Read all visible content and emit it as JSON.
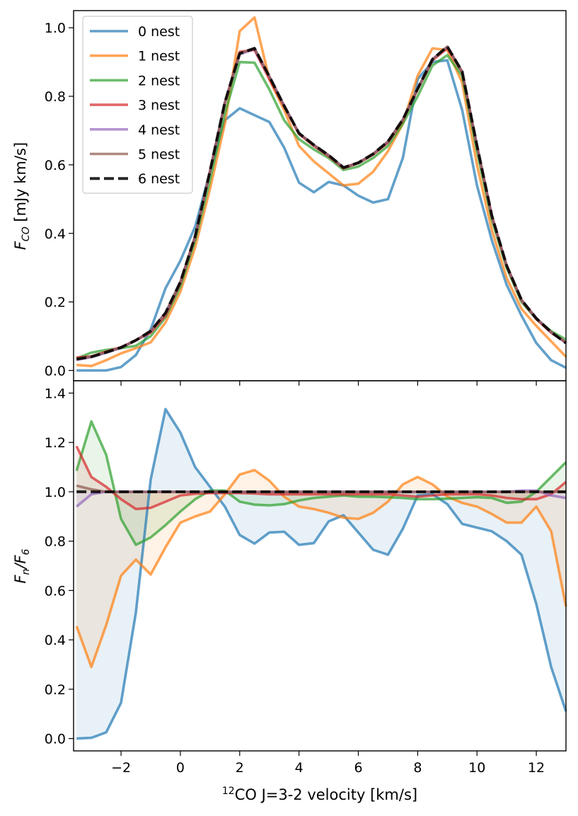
{
  "chart_data": [
    {
      "type": "line",
      "panel": "top",
      "ylabel": "F_CO [mJy km/s]",
      "ylabel_parts": {
        "main": "F",
        "sub": "CO",
        "rest": " [mJy km/s]"
      },
      "xlim": [
        -3.6,
        13.0
      ],
      "ylim": [
        -0.03,
        1.05
      ],
      "yticks": [
        0.0,
        0.2,
        0.4,
        0.6,
        0.8,
        1.0
      ],
      "ytick_labels": [
        "0.0",
        "0.2",
        "0.4",
        "0.6",
        "0.8",
        "1.0"
      ],
      "legend_placement": "upper-left",
      "x": [
        -3.5,
        -3.0,
        -2.5,
        -2.0,
        -1.5,
        -1.0,
        -0.5,
        0.0,
        0.5,
        1.0,
        1.5,
        2.0,
        2.5,
        3.0,
        3.5,
        4.0,
        4.5,
        5.0,
        5.5,
        6.0,
        6.5,
        7.0,
        7.5,
        8.0,
        8.5,
        9.0,
        9.5,
        10.0,
        10.5,
        11.0,
        11.5,
        12.0,
        12.5,
        13.0
      ],
      "series": [
        {
          "name": "0 nest",
          "color": "#1f77b4",
          "dash": "solid",
          "values": [
            0.0,
            0.0,
            0.0,
            0.01,
            0.045,
            0.12,
            0.24,
            0.32,
            0.42,
            0.58,
            0.73,
            0.765,
            0.745,
            0.725,
            0.65,
            0.548,
            0.52,
            0.55,
            0.54,
            0.51,
            0.49,
            0.5,
            0.62,
            0.85,
            0.9,
            0.905,
            0.76,
            0.54,
            0.38,
            0.25,
            0.16,
            0.08,
            0.03,
            0.008
          ]
        },
        {
          "name": "1 nest",
          "color": "#ff7f0e",
          "dash": "solid",
          "values": [
            0.016,
            0.013,
            0.03,
            0.05,
            0.065,
            0.082,
            0.14,
            0.23,
            0.36,
            0.53,
            0.72,
            0.99,
            1.03,
            0.85,
            0.76,
            0.655,
            0.61,
            0.575,
            0.54,
            0.545,
            0.58,
            0.64,
            0.72,
            0.86,
            0.94,
            0.935,
            0.84,
            0.6,
            0.41,
            0.27,
            0.18,
            0.13,
            0.085,
            0.04
          ]
        },
        {
          "name": "2 nest",
          "color": "#2ca02c",
          "dash": "solid",
          "values": [
            0.035,
            0.052,
            0.06,
            0.065,
            0.072,
            0.1,
            0.155,
            0.245,
            0.38,
            0.555,
            0.75,
            0.9,
            0.898,
            0.82,
            0.73,
            0.675,
            0.645,
            0.62,
            0.585,
            0.595,
            0.62,
            0.655,
            0.72,
            0.8,
            0.89,
            0.92,
            0.86,
            0.64,
            0.44,
            0.3,
            0.2,
            0.15,
            0.115,
            0.09
          ]
        },
        {
          "name": "3 nest",
          "color": "#d62728",
          "dash": "solid",
          "values": [
            0.038,
            0.041,
            0.055,
            0.068,
            0.088,
            0.11,
            0.16,
            0.255,
            0.39,
            0.58,
            0.78,
            0.93,
            0.935,
            0.85,
            0.77,
            0.69,
            0.655,
            0.625,
            0.59,
            0.605,
            0.63,
            0.665,
            0.73,
            0.82,
            0.905,
            0.94,
            0.87,
            0.655,
            0.45,
            0.305,
            0.205,
            0.15,
            0.11,
            0.082
          ]
        },
        {
          "name": "4 nest",
          "color": "#9467bd",
          "dash": "solid",
          "values": [
            0.031,
            0.039,
            0.052,
            0.066,
            0.088,
            0.115,
            0.168,
            0.258,
            0.392,
            0.582,
            0.782,
            0.922,
            0.938,
            0.858,
            0.772,
            0.692,
            0.658,
            0.628,
            0.592,
            0.606,
            0.632,
            0.668,
            0.732,
            0.822,
            0.908,
            0.944,
            0.872,
            0.656,
            0.452,
            0.306,
            0.206,
            0.152,
            0.112,
            0.08
          ]
        },
        {
          "name": "5 nest",
          "color": "#8c564b",
          "dash": "solid",
          "values": [
            0.034,
            0.04,
            0.053,
            0.067,
            0.088,
            0.115,
            0.168,
            0.258,
            0.392,
            0.582,
            0.782,
            0.925,
            0.94,
            0.858,
            0.772,
            0.692,
            0.658,
            0.628,
            0.592,
            0.606,
            0.632,
            0.668,
            0.732,
            0.822,
            0.908,
            0.945,
            0.872,
            0.656,
            0.452,
            0.306,
            0.206,
            0.152,
            0.112,
            0.081
          ]
        },
        {
          "name": "6 nest",
          "color": "#000000",
          "dash": "dashed",
          "values": [
            0.033,
            0.04,
            0.053,
            0.067,
            0.088,
            0.115,
            0.168,
            0.258,
            0.392,
            0.582,
            0.782,
            0.925,
            0.94,
            0.858,
            0.772,
            0.692,
            0.658,
            0.628,
            0.592,
            0.606,
            0.632,
            0.668,
            0.732,
            0.822,
            0.908,
            0.945,
            0.872,
            0.656,
            0.452,
            0.306,
            0.206,
            0.152,
            0.112,
            0.08
          ]
        }
      ]
    },
    {
      "type": "line",
      "panel": "bottom",
      "xlabel": "12CO J=3-2 velocity [km/s]",
      "xlabel_parts": {
        "sup": "12",
        "rest": "CO J=3-2 velocity [km/s]"
      },
      "ylabel": "F_n/F_6",
      "ylabel_parts": {
        "main": "F",
        "sub": "n",
        "mid": "/F",
        "sub2": "6"
      },
      "xlim": [
        -3.6,
        13.0
      ],
      "ylim": [
        -0.05,
        1.45
      ],
      "xticks": [
        -2,
        0,
        2,
        4,
        6,
        8,
        10,
        12
      ],
      "xtick_labels": [
        "−2",
        "0",
        "2",
        "4",
        "6",
        "8",
        "10",
        "12"
      ],
      "yticks": [
        0.0,
        0.2,
        0.4,
        0.6,
        0.8,
        1.0,
        1.2,
        1.4
      ],
      "ytick_labels": [
        "0.0",
        "0.2",
        "0.4",
        "0.6",
        "0.8",
        "1.0",
        "1.2",
        "1.4"
      ],
      "fill_between_series_and": 1.0,
      "x": [
        -3.5,
        -3.0,
        -2.5,
        -2.0,
        -1.5,
        -1.0,
        -0.5,
        0.0,
        0.5,
        1.0,
        1.5,
        2.0,
        2.5,
        3.0,
        3.5,
        4.0,
        4.5,
        5.0,
        5.5,
        6.0,
        6.5,
        7.0,
        7.5,
        8.0,
        8.5,
        9.0,
        9.5,
        10.0,
        10.5,
        11.0,
        11.5,
        12.0,
        12.5,
        13.0
      ],
      "series": [
        {
          "name": "0 nest",
          "color": "#1f77b4",
          "dash": "solid",
          "values": [
            0.0,
            0.003,
            0.025,
            0.145,
            0.51,
            1.05,
            1.335,
            1.24,
            1.1,
            1.02,
            0.94,
            0.825,
            0.79,
            0.835,
            0.838,
            0.785,
            0.792,
            0.88,
            0.905,
            0.835,
            0.765,
            0.745,
            0.85,
            0.985,
            0.99,
            0.95,
            0.87,
            0.855,
            0.84,
            0.8,
            0.745,
            0.545,
            0.29,
            0.11
          ]
        },
        {
          "name": "1 nest",
          "color": "#ff7f0e",
          "dash": "solid",
          "values": [
            0.455,
            0.29,
            0.46,
            0.66,
            0.725,
            0.665,
            0.775,
            0.875,
            0.9,
            0.92,
            0.99,
            1.07,
            1.088,
            1.045,
            0.98,
            0.94,
            0.93,
            0.915,
            0.895,
            0.89,
            0.915,
            0.96,
            1.03,
            1.06,
            1.03,
            0.98,
            0.955,
            0.94,
            0.91,
            0.875,
            0.875,
            0.94,
            0.84,
            0.535
          ]
        },
        {
          "name": "2 nest",
          "color": "#2ca02c",
          "dash": "solid",
          "values": [
            1.085,
            1.285,
            1.15,
            0.89,
            0.785,
            0.815,
            0.865,
            0.92,
            0.97,
            1.005,
            1.005,
            0.96,
            0.948,
            0.945,
            0.95,
            0.965,
            0.975,
            0.98,
            0.985,
            0.98,
            0.98,
            0.978,
            0.975,
            0.97,
            0.97,
            0.972,
            0.975,
            0.978,
            0.975,
            0.955,
            0.96,
            1.0,
            1.06,
            1.12
          ]
        },
        {
          "name": "3 nest",
          "color": "#d62728",
          "dash": "solid",
          "values": [
            1.185,
            1.06,
            1.02,
            0.97,
            0.93,
            0.935,
            0.96,
            0.985,
            0.992,
            0.995,
            0.995,
            0.995,
            0.993,
            0.99,
            0.99,
            0.99,
            0.99,
            0.99,
            0.99,
            0.99,
            0.99,
            0.99,
            0.985,
            0.98,
            0.985,
            0.99,
            0.99,
            0.99,
            0.985,
            0.975,
            0.97,
            0.97,
            0.99,
            1.04
          ]
        },
        {
          "name": "4 nest",
          "color": "#9467bd",
          "dash": "solid",
          "values": [
            0.94,
            0.99,
            1.0,
            1.0,
            1.0,
            1.0,
            1.0,
            1.0,
            1.0,
            1.0,
            1.0,
            1.0,
            1.0,
            1.0,
            1.0,
            1.0,
            1.0,
            1.0,
            1.0,
            1.0,
            1.0,
            1.0,
            1.0,
            1.0,
            1.0,
            1.0,
            1.0,
            1.0,
            1.0,
            1.0,
            1.005,
            1.005,
            0.985,
            0.975
          ]
        },
        {
          "name": "5 nest",
          "color": "#8c564b",
          "dash": "solid",
          "values": [
            1.025,
            1.01,
            1.0,
            1.0,
            1.0,
            1.0,
            1.0,
            1.0,
            1.0,
            1.0,
            1.0,
            1.0,
            1.0,
            1.0,
            1.0,
            1.0,
            1.0,
            1.0,
            1.0,
            1.0,
            1.0,
            1.0,
            1.0,
            1.0,
            1.0,
            1.0,
            1.0,
            1.0,
            1.0,
            1.0,
            1.0,
            1.0,
            1.0,
            1.0
          ]
        },
        {
          "name": "6 nest",
          "color": "#000000",
          "dash": "dashed",
          "values": [
            1.0,
            1.0,
            1.0,
            1.0,
            1.0,
            1.0,
            1.0,
            1.0,
            1.0,
            1.0,
            1.0,
            1.0,
            1.0,
            1.0,
            1.0,
            1.0,
            1.0,
            1.0,
            1.0,
            1.0,
            1.0,
            1.0,
            1.0,
            1.0,
            1.0,
            1.0,
            1.0,
            1.0,
            1.0,
            1.0,
            1.0,
            1.0,
            1.0,
            1.0
          ]
        }
      ]
    }
  ]
}
